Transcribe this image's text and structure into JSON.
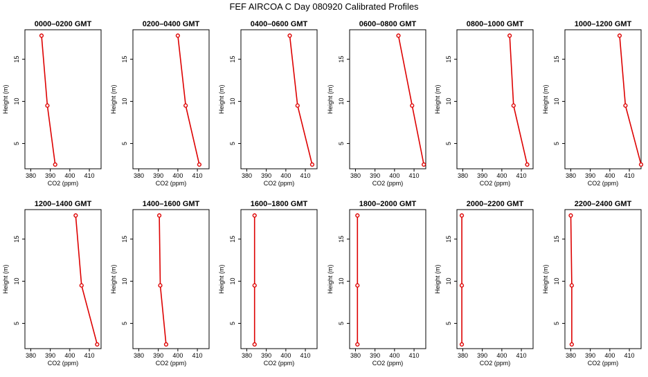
{
  "title": "FEF AIRCOA C  Day 080920  Calibrated Profiles",
  "colors": {
    "series": "#dd0000",
    "axis": "#000000",
    "background": "#ffffff"
  },
  "chart_data": [
    {
      "type": "line",
      "title": "0000–0200 GMT",
      "xlabel": "CO2 (ppm)",
      "ylabel": "Height (m)",
      "xlim": [
        377,
        416
      ],
      "ylim": [
        2,
        18.5
      ],
      "xticks": [
        380,
        390,
        400,
        410
      ],
      "yticks": [
        5,
        10,
        15
      ],
      "x": [
        385.5,
        388.5,
        392.5
      ],
      "y": [
        17.8,
        9.5,
        2.5
      ]
    },
    {
      "type": "line",
      "title": "0200–0400 GMT",
      "xlabel": "CO2 (ppm)",
      "ylabel": "Height (m)",
      "xlim": [
        377,
        416
      ],
      "ylim": [
        2,
        18.5
      ],
      "xticks": [
        380,
        390,
        400,
        410
      ],
      "yticks": [
        5,
        10,
        15
      ],
      "x": [
        400,
        404,
        411
      ],
      "y": [
        17.8,
        9.5,
        2.5
      ]
    },
    {
      "type": "line",
      "title": "0400–0600 GMT",
      "xlabel": "CO2 (ppm)",
      "ylabel": "Height (m)",
      "xlim": [
        377,
        416
      ],
      "ylim": [
        2,
        18.5
      ],
      "xticks": [
        380,
        390,
        400,
        410
      ],
      "yticks": [
        5,
        10,
        15
      ],
      "x": [
        402,
        406,
        413.5
      ],
      "y": [
        17.8,
        9.5,
        2.5
      ]
    },
    {
      "type": "line",
      "title": "0600–0800 GMT",
      "xlabel": "CO2 (ppm)",
      "ylabel": "Height (m)",
      "xlim": [
        377,
        416
      ],
      "ylim": [
        2,
        18.5
      ],
      "xticks": [
        380,
        390,
        400,
        410
      ],
      "yticks": [
        5,
        10,
        15
      ],
      "x": [
        402,
        409,
        415
      ],
      "y": [
        17.8,
        9.5,
        2.5
      ]
    },
    {
      "type": "line",
      "title": "0800–1000 GMT",
      "xlabel": "CO2 (ppm)",
      "ylabel": "Height (m)",
      "xlim": [
        377,
        416
      ],
      "ylim": [
        2,
        18.5
      ],
      "xticks": [
        380,
        390,
        400,
        410
      ],
      "yticks": [
        5,
        10,
        15
      ],
      "x": [
        404,
        406,
        413
      ],
      "y": [
        17.8,
        9.5,
        2.5
      ]
    },
    {
      "type": "line",
      "title": "1000–1200 GMT",
      "xlabel": "CO2 (ppm)",
      "ylabel": "Height (m)",
      "xlim": [
        377,
        416
      ],
      "ylim": [
        2,
        18.5
      ],
      "xticks": [
        380,
        390,
        400,
        410
      ],
      "yticks": [
        5,
        10,
        15
      ],
      "x": [
        405,
        408,
        416
      ],
      "y": [
        17.8,
        9.5,
        2.5
      ]
    },
    {
      "type": "line",
      "title": "1200–1400 GMT",
      "xlabel": "CO2 (ppm)",
      "ylabel": "Height (m)",
      "xlim": [
        377,
        416
      ],
      "ylim": [
        2,
        18.5
      ],
      "xticks": [
        380,
        390,
        400,
        410
      ],
      "yticks": [
        5,
        10,
        15
      ],
      "x": [
        403,
        406,
        414
      ],
      "y": [
        17.8,
        9.5,
        2.5
      ]
    },
    {
      "type": "line",
      "title": "1400–1600 GMT",
      "xlabel": "CO2 (ppm)",
      "ylabel": "Height (m)",
      "xlim": [
        377,
        416
      ],
      "ylim": [
        2,
        18.5
      ],
      "xticks": [
        380,
        390,
        400,
        410
      ],
      "yticks": [
        5,
        10,
        15
      ],
      "x": [
        390.5,
        391,
        394
      ],
      "y": [
        17.8,
        9.5,
        2.5
      ]
    },
    {
      "type": "line",
      "title": "1600–1800 GMT",
      "xlabel": "CO2 (ppm)",
      "ylabel": "Height (m)",
      "xlim": [
        377,
        416
      ],
      "ylim": [
        2,
        18.5
      ],
      "xticks": [
        380,
        390,
        400,
        410
      ],
      "yticks": [
        5,
        10,
        15
      ],
      "x": [
        384,
        384,
        384
      ],
      "y": [
        17.8,
        9.5,
        2.5
      ]
    },
    {
      "type": "line",
      "title": "1800–2000 GMT",
      "xlabel": "CO2 (ppm)",
      "ylabel": "Height (m)",
      "xlim": [
        377,
        416
      ],
      "ylim": [
        2,
        18.5
      ],
      "xticks": [
        380,
        390,
        400,
        410
      ],
      "yticks": [
        5,
        10,
        15
      ],
      "x": [
        381,
        381,
        381
      ],
      "y": [
        17.8,
        9.5,
        2.5
      ]
    },
    {
      "type": "line",
      "title": "2000–2200 GMT",
      "xlabel": "CO2 (ppm)",
      "ylabel": "Height (m)",
      "xlim": [
        377,
        416
      ],
      "ylim": [
        2,
        18.5
      ],
      "xticks": [
        380,
        390,
        400,
        410
      ],
      "yticks": [
        5,
        10,
        15
      ],
      "x": [
        379.5,
        379.5,
        379.5
      ],
      "y": [
        17.8,
        9.5,
        2.5
      ]
    },
    {
      "type": "line",
      "title": "2200–2400 GMT",
      "xlabel": "CO2 (ppm)",
      "ylabel": "Height (m)",
      "xlim": [
        377,
        416
      ],
      "ylim": [
        2,
        18.5
      ],
      "xticks": [
        380,
        390,
        400,
        410
      ],
      "yticks": [
        5,
        10,
        15
      ],
      "x": [
        380,
        380.5,
        380.5
      ],
      "y": [
        17.8,
        9.5,
        2.5
      ]
    }
  ]
}
